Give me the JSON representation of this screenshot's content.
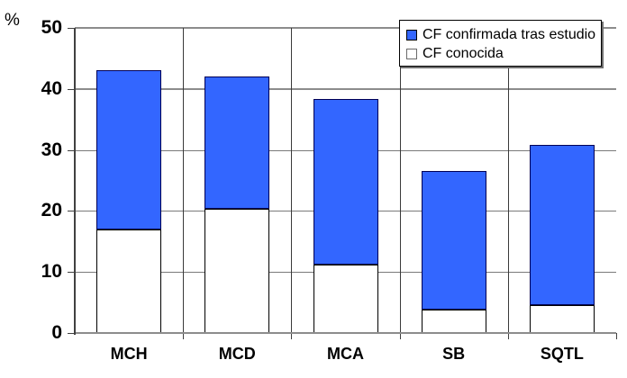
{
  "chart_data": {
    "type": "bar",
    "stacked": true,
    "title": "",
    "ylabel": "%",
    "xlabel": "",
    "ylim": [
      0,
      50
    ],
    "yticks": [
      0,
      10,
      20,
      30,
      40,
      50
    ],
    "grid": true,
    "category_gridlines": true,
    "legend_position": "top-right",
    "categories": [
      "MCH",
      "MCD",
      "MCA",
      "SB",
      "SQTL"
    ],
    "series": [
      {
        "name": "CF conocida",
        "color": "#ffffff",
        "values": [
          17,
          20.4,
          11.2,
          3.8,
          4.6
        ]
      },
      {
        "name": "CF confirmada tras estudio",
        "color": "#3366ff",
        "values": [
          26,
          21.6,
          27.1,
          22.7,
          26.2
        ]
      }
    ],
    "stacked_totals": [
      43,
      42,
      38.3,
      26.5,
      30.8
    ],
    "legend_items": [
      {
        "label": "CF confirmada tras estudio",
        "color": "#3366ff"
      },
      {
        "label": "CF conocida",
        "color": "#ffffff"
      }
    ]
  },
  "colors": {
    "bar_blue": "#3366ff",
    "bar_white": "#ffffff",
    "gridline": "#7a7a7a",
    "axis": "#404040"
  }
}
